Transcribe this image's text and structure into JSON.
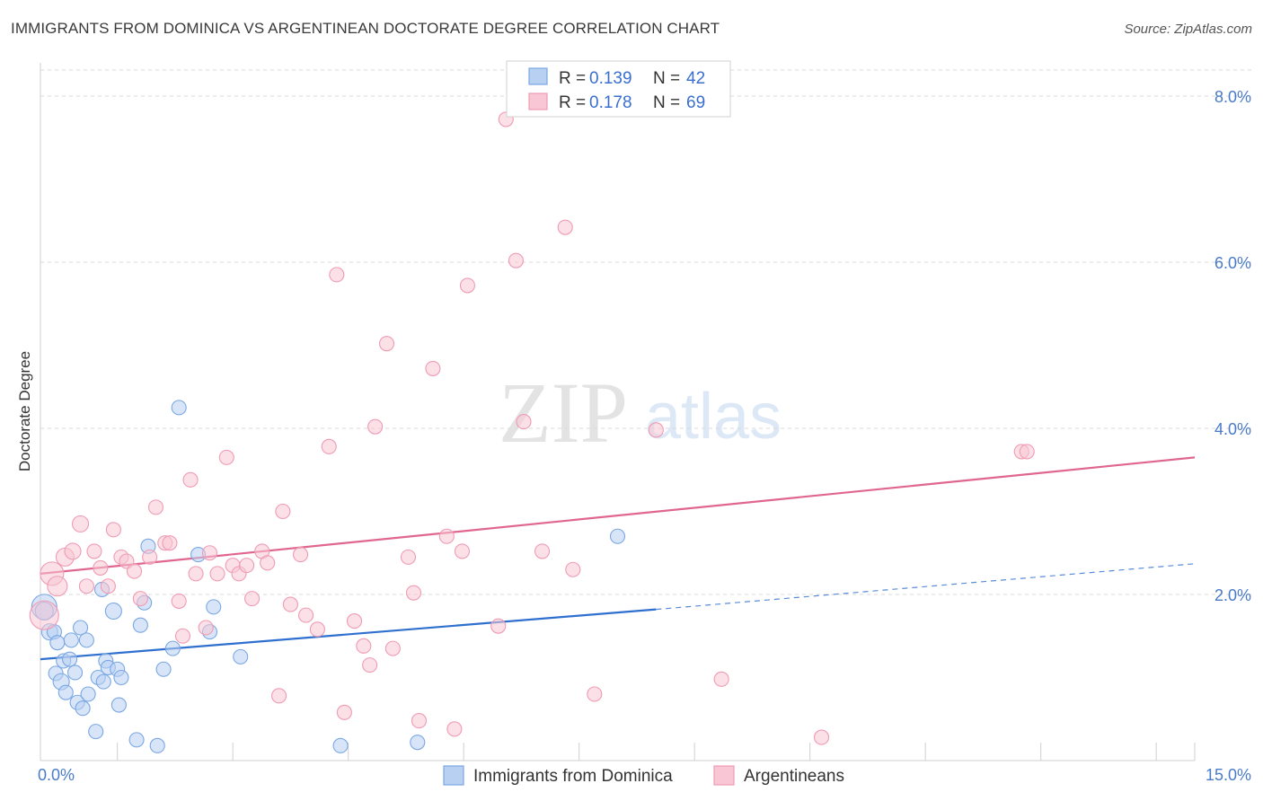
{
  "header": {
    "title": "IMMIGRANTS FROM DOMINICA VS ARGENTINEAN DOCTORATE DEGREE CORRELATION CHART",
    "source": "Source: ZipAtlas.com"
  },
  "watermark": {
    "zip": "ZIP",
    "atlas": "atlas"
  },
  "legend": {
    "series": [
      {
        "r_label": "R = ",
        "r_value": "0.139",
        "n_label": "N = ",
        "n_value": "42"
      },
      {
        "r_label": "R = ",
        "r_value": "0.178",
        "n_label": "N = ",
        "n_value": "69"
      }
    ],
    "bottom": [
      "Immigrants from Dominica",
      "Argentineans"
    ]
  },
  "colors": {
    "blue_fill": "#b8d0f2",
    "blue_stroke": "#7aa7e3",
    "blue_line": "#2f6fcf",
    "pink_fill": "#f8c6d4",
    "pink_stroke": "#ef9bb4",
    "pink_line": "#e0668f",
    "grid": "#d8d8d8",
    "tick_text": "#4a7bc8"
  },
  "chart_data": {
    "type": "scatter",
    "title": "IMMIGRANTS FROM DOMINICA VS ARGENTINEAN DOCTORATE DEGREE CORRELATION CHART",
    "xlabel": "",
    "ylabel": "Doctorate Degree",
    "xlim": [
      0,
      15
    ],
    "ylim": [
      0,
      8.4
    ],
    "x_tick_labels": [
      "0.0%",
      "15.0%"
    ],
    "y_ticks": [
      2,
      4,
      6,
      8
    ],
    "y_tick_labels": [
      "2.0%",
      "4.0%",
      "6.0%",
      "8.0%"
    ],
    "grid": true,
    "series": [
      {
        "name": "Immigrants from Dominica",
        "color": "blue",
        "r": 0.139,
        "n": 42,
        "trend": {
          "x0": 0,
          "y0": 1.22,
          "x1": 8.0,
          "y1": 1.82,
          "dash_x_end": 15,
          "dash_y_end": 2.37
        },
        "points": [
          [
            0.05,
            1.85,
            14
          ],
          [
            0.05,
            1.8,
            10
          ],
          [
            0.12,
            1.55,
            9
          ],
          [
            0.18,
            1.55,
            8
          ],
          [
            0.2,
            1.05,
            8
          ],
          [
            0.22,
            1.42,
            8
          ],
          [
            0.27,
            0.95,
            9
          ],
          [
            0.3,
            1.2,
            8
          ],
          [
            0.33,
            0.82,
            8
          ],
          [
            0.38,
            1.22,
            8
          ],
          [
            0.4,
            1.45,
            8
          ],
          [
            0.45,
            1.06,
            8
          ],
          [
            0.48,
            0.7,
            8
          ],
          [
            0.52,
            1.6,
            8
          ],
          [
            0.55,
            0.63,
            8
          ],
          [
            0.6,
            1.45,
            8
          ],
          [
            0.62,
            0.8,
            8
          ],
          [
            0.72,
            0.35,
            8
          ],
          [
            0.75,
            1.0,
            8
          ],
          [
            0.8,
            2.06,
            8
          ],
          [
            0.82,
            0.95,
            8
          ],
          [
            0.85,
            1.2,
            8
          ],
          [
            0.88,
            1.12,
            8
          ],
          [
            0.95,
            1.8,
            9
          ],
          [
            1.0,
            1.1,
            8
          ],
          [
            1.02,
            0.67,
            8
          ],
          [
            1.05,
            1.0,
            8
          ],
          [
            1.25,
            0.25,
            8
          ],
          [
            1.3,
            1.63,
            8
          ],
          [
            1.35,
            1.9,
            8
          ],
          [
            1.4,
            2.58,
            8
          ],
          [
            1.52,
            0.18,
            8
          ],
          [
            1.6,
            1.1,
            8
          ],
          [
            1.72,
            1.35,
            8
          ],
          [
            1.8,
            4.25,
            8
          ],
          [
            2.05,
            2.48,
            8
          ],
          [
            2.2,
            1.55,
            8
          ],
          [
            2.25,
            1.85,
            8
          ],
          [
            2.6,
            1.25,
            8
          ],
          [
            3.9,
            0.18,
            8
          ],
          [
            4.9,
            0.22,
            8
          ],
          [
            7.5,
            2.7,
            8
          ]
        ]
      },
      {
        "name": "Argentineans",
        "color": "pink",
        "r": 0.178,
        "n": 69,
        "trend": {
          "x0": 0,
          "y0": 2.25,
          "x1": 15,
          "y1": 3.65
        },
        "points": [
          [
            0.05,
            1.75,
            16
          ],
          [
            0.15,
            2.25,
            13
          ],
          [
            0.22,
            2.1,
            11
          ],
          [
            0.32,
            2.45,
            10
          ],
          [
            0.42,
            2.52,
            9
          ],
          [
            0.52,
            2.85,
            9
          ],
          [
            0.6,
            2.1,
            8
          ],
          [
            0.7,
            2.52,
            8
          ],
          [
            0.78,
            2.32,
            8
          ],
          [
            0.88,
            2.1,
            8
          ],
          [
            0.95,
            2.78,
            8
          ],
          [
            1.05,
            2.45,
            8
          ],
          [
            1.12,
            2.4,
            8
          ],
          [
            1.22,
            2.28,
            8
          ],
          [
            1.3,
            1.95,
            8
          ],
          [
            1.42,
            2.45,
            8
          ],
          [
            1.5,
            3.05,
            8
          ],
          [
            1.62,
            2.62,
            8
          ],
          [
            1.68,
            2.62,
            8
          ],
          [
            1.8,
            1.92,
            8
          ],
          [
            1.85,
            1.5,
            8
          ],
          [
            1.95,
            3.38,
            8
          ],
          [
            2.02,
            2.25,
            8
          ],
          [
            2.15,
            1.6,
            8
          ],
          [
            2.2,
            2.5,
            8
          ],
          [
            2.3,
            2.25,
            8
          ],
          [
            2.42,
            3.65,
            8
          ],
          [
            2.5,
            2.35,
            8
          ],
          [
            2.58,
            2.25,
            8
          ],
          [
            2.68,
            2.35,
            8
          ],
          [
            2.75,
            1.95,
            8
          ],
          [
            2.88,
            2.52,
            8
          ],
          [
            2.95,
            2.38,
            8
          ],
          [
            3.1,
            0.78,
            8
          ],
          [
            3.15,
            3.0,
            8
          ],
          [
            3.25,
            1.88,
            8
          ],
          [
            3.38,
            2.48,
            8
          ],
          [
            3.45,
            1.75,
            8
          ],
          [
            3.6,
            1.58,
            8
          ],
          [
            3.75,
            3.78,
            8
          ],
          [
            3.85,
            5.85,
            8
          ],
          [
            3.95,
            0.58,
            8
          ],
          [
            4.08,
            1.68,
            8
          ],
          [
            4.2,
            1.38,
            8
          ],
          [
            4.28,
            1.15,
            8
          ],
          [
            4.35,
            4.02,
            8
          ],
          [
            4.5,
            5.02,
            8
          ],
          [
            4.58,
            1.35,
            8
          ],
          [
            4.78,
            2.45,
            8
          ],
          [
            4.85,
            2.02,
            8
          ],
          [
            4.92,
            0.48,
            8
          ],
          [
            5.1,
            4.72,
            8
          ],
          [
            5.28,
            2.7,
            8
          ],
          [
            5.38,
            0.38,
            8
          ],
          [
            5.48,
            2.52,
            8
          ],
          [
            5.55,
            5.72,
            8
          ],
          [
            5.95,
            1.62,
            8
          ],
          [
            6.05,
            7.72,
            8
          ],
          [
            6.18,
            6.02,
            8
          ],
          [
            6.28,
            4.08,
            8
          ],
          [
            6.52,
            2.52,
            8
          ],
          [
            6.82,
            6.42,
            8
          ],
          [
            6.92,
            2.3,
            8
          ],
          [
            7.2,
            0.8,
            8
          ],
          [
            8.0,
            3.98,
            8
          ],
          [
            8.85,
            0.98,
            8
          ],
          [
            10.15,
            0.28,
            8
          ],
          [
            12.75,
            3.72,
            8
          ],
          [
            12.82,
            3.72,
            8
          ]
        ]
      }
    ]
  }
}
